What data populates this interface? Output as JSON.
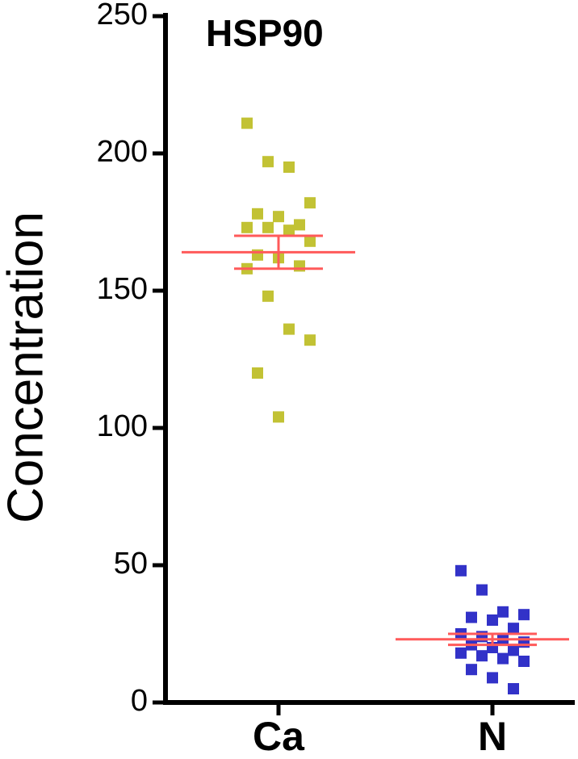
{
  "chart_data": {
    "type": "dot",
    "title": "HSP90",
    "y_label": "Concentration",
    "categories": [
      "Ca",
      "N"
    ],
    "values": [
      [
        211,
        197,
        195,
        182,
        178,
        177,
        174,
        173,
        173,
        172,
        168,
        163,
        162,
        159,
        158,
        148,
        136,
        132,
        120,
        104
      ],
      [
        48,
        41,
        33,
        32,
        31,
        30,
        27,
        25,
        24,
        23,
        22,
        21,
        20,
        19,
        18,
        17,
        16,
        15,
        12,
        9,
        5
      ]
    ],
    "colors": [
      "#c2c234",
      "#3232c8"
    ],
    "mean": [
      164,
      23
    ],
    "sem": [
      6,
      2
    ],
    "error_color": "#ff5a5a",
    "ylim": [
      0,
      250
    ],
    "yticks": [
      0,
      50,
      100,
      150,
      200,
      250
    ]
  }
}
